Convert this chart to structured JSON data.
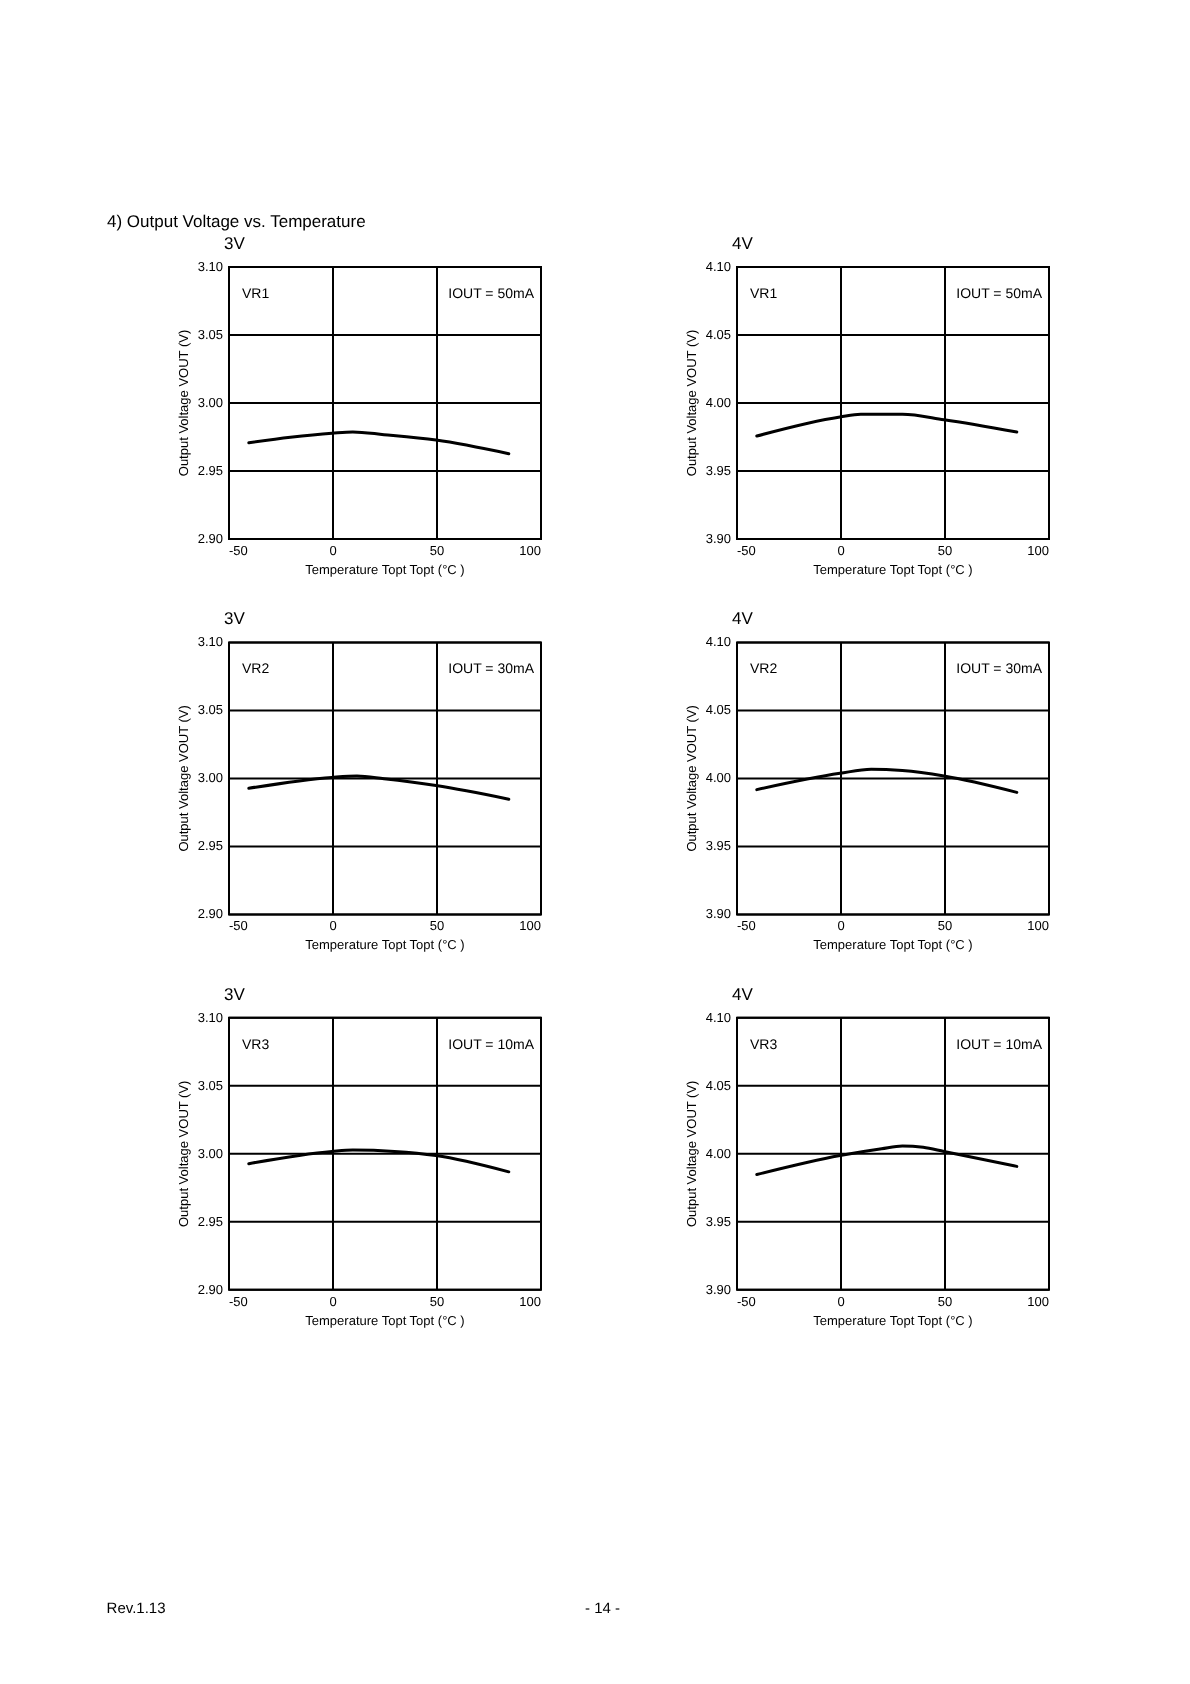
{
  "chart_data": [
    {
      "type": "line",
      "title": "3V",
      "xlabel": "Temperature Topt Topt (°C )",
      "ylabel": "Output Voltage VOUT (V)",
      "annotations": [
        "VR1",
        "IOUT = 50mA",
        "4)  Output Voltage vs. Temperature"
      ],
      "x": [
        -40,
        -20,
        0,
        10,
        25,
        50,
        85
      ],
      "series": [
        {
          "color": "#000000",
          "values": [
            2.97,
            2.974,
            2.977,
            2.978,
            2.976,
            2.972,
            2.962
          ]
        }
      ],
      "xlim": [
        -50,
        100
      ],
      "xticks": [
        -50,
        0,
        50,
        100
      ],
      "ylim": [
        2.9,
        3.1
      ],
      "yticks": [
        {
          "value": 2.9,
          "label": "2.90"
        },
        2.95,
        {
          "value": 3,
          "label": "3.00"
        },
        3.05,
        {
          "value": 3.1,
          "label": "3.10"
        }
      ],
      "grid": true
    },
    {
      "type": "line",
      "title": "4V",
      "xlabel": "Temperature Topt Topt (°C )",
      "ylabel": "Output Voltage VOUT (V)",
      "annotations": [
        "VR1",
        "IOUT = 50mA"
      ],
      "x": [
        -40,
        0,
        10,
        30,
        50,
        85
      ],
      "series": [
        {
          "color": "#000000",
          "values": [
            3.975,
            3.989,
            3.991,
            3.991,
            3.987,
            3.978
          ]
        }
      ],
      "xlim": [
        -50,
        100
      ],
      "xticks": [
        -50,
        0,
        50,
        100
      ],
      "ylim": [
        3.9,
        4.1
      ],
      "yticks": [
        {
          "value": 3.9,
          "label": "3.90"
        },
        3.95,
        {
          "value": 4,
          "label": "4.00"
        },
        4.05,
        {
          "value": 4.1,
          "label": "4.10"
        }
      ],
      "grid": true
    },
    {
      "type": "line",
      "title": "3V",
      "xlabel": "Temperature Topt Topt (°C )",
      "ylabel": "Output Voltage VOUT (V)",
      "annotations": [
        "VR2",
        "IOUT = 30mA"
      ],
      "x": [
        -40,
        0,
        12,
        25,
        50,
        85
      ],
      "series": [
        {
          "color": "#000000",
          "values": [
            2.992,
            3.0,
            3.001,
            2.999,
            2.994,
            2.984
          ]
        }
      ],
      "xlim": [
        -50,
        100
      ],
      "xticks": [
        -50,
        0,
        50,
        100
      ],
      "ylim": [
        2.9,
        3.1
      ],
      "yticks": [
        {
          "value": 2.9,
          "label": "2.90"
        },
        2.95,
        {
          "value": 3,
          "label": "3.00"
        },
        3.05,
        {
          "value": 3.1,
          "label": "3.10"
        }
      ],
      "grid": true
    },
    {
      "type": "line",
      "title": "4V",
      "xlabel": "Temperature Topt Topt (°C )",
      "ylabel": "Output Voltage VOUT (V)",
      "annotations": [
        "VR2",
        "IOUT = 30mA"
      ],
      "x": [
        -40,
        0,
        15,
        30,
        50,
        85
      ],
      "series": [
        {
          "color": "#000000",
          "values": [
            3.991,
            4.003,
            4.006,
            4.005,
            4.001,
            3.989
          ]
        }
      ],
      "xlim": [
        -50,
        100
      ],
      "xticks": [
        -50,
        0,
        50,
        100
      ],
      "ylim": [
        3.9,
        4.1
      ],
      "yticks": [
        {
          "value": 3.9,
          "label": "3.90"
        },
        3.95,
        {
          "value": 4,
          "label": "4.00"
        },
        4.05,
        {
          "value": 4.1,
          "label": "4.10"
        }
      ],
      "grid": true
    },
    {
      "type": "line",
      "title": "3V",
      "xlabel": "Temperature Topt Topt (°C )",
      "ylabel": "Output Voltage VOUT (V)",
      "annotations": [
        "VR3",
        "IOUT = 10mA"
      ],
      "x": [
        -40,
        0,
        10,
        30,
        50,
        85
      ],
      "series": [
        {
          "color": "#000000",
          "values": [
            2.992,
            3.001,
            3.002,
            3.001,
            2.998,
            2.986
          ]
        }
      ],
      "xlim": [
        -50,
        100
      ],
      "xticks": [
        -50,
        0,
        50,
        100
      ],
      "ylim": [
        2.9,
        3.1
      ],
      "yticks": [
        {
          "value": 2.9,
          "label": "2.90"
        },
        2.95,
        {
          "value": 3,
          "label": "3.00"
        },
        3.05,
        {
          "value": 3.1,
          "label": "3.10"
        }
      ],
      "grid": true
    },
    {
      "type": "line",
      "title": "4V",
      "xlabel": "Temperature Topt Topt (°C )",
      "ylabel": "Output Voltage VOUT (V)",
      "annotations": [
        "VR3",
        "IOUT = 10mA",
        "Rev.1.13",
        "- 14 -"
      ],
      "x": [
        -40,
        0,
        20,
        30,
        40,
        50,
        85
      ],
      "series": [
        {
          "color": "#000000",
          "values": [
            3.984,
            3.998,
            4.003,
            4.005,
            4.004,
            4.001,
            3.99
          ]
        }
      ],
      "xlim": [
        -50,
        100
      ],
      "xticks": [
        -50,
        0,
        50,
        100
      ],
      "ylim": [
        3.9,
        4.1
      ],
      "yticks": [
        {
          "value": 3.9,
          "label": "3.90"
        },
        3.95,
        {
          "value": 4,
          "label": "4.00"
        },
        4.05,
        {
          "value": 4.1,
          "label": "4.10"
        }
      ],
      "grid": true
    }
  ]
}
